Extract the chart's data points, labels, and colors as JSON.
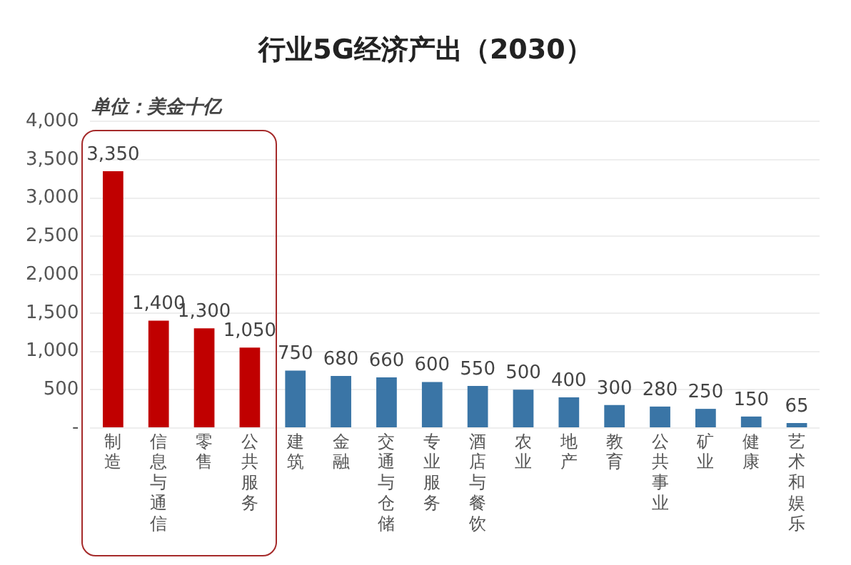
{
  "chart_data": {
    "type": "bar",
    "title": "行业5G经济产出（2030）",
    "annotations": [
      "单位：美金十亿"
    ],
    "categories": [
      "制造",
      "信息与通信",
      "零售",
      "公共服务",
      "建筑",
      "金融",
      "交通与仓储",
      "专业服务",
      "酒店与餐饮",
      "农业",
      "地产",
      "教育",
      "公共事业",
      "矿业",
      "健康",
      "艺术和娱乐"
    ],
    "values": [
      3350,
      1400,
      1300,
      1050,
      750,
      680,
      660,
      600,
      550,
      500,
      400,
      300,
      280,
      250,
      150,
      65
    ],
    "colors": [
      "#c00000",
      "#c00000",
      "#c00000",
      "#c00000",
      "#3a75a6",
      "#3a75a6",
      "#3a75a6",
      "#3a75a6",
      "#3a75a6",
      "#3a75a6",
      "#3a75a6",
      "#3a75a6",
      "#3a75a6",
      "#3a75a6",
      "#3a75a6",
      "#3a75a6"
    ],
    "value_labels": [
      "3,350",
      "1,400",
      "1,300",
      "1,050",
      "750",
      "680",
      "660",
      "600",
      "550",
      "500",
      "400",
      "300",
      "280",
      "250",
      "150",
      "65"
    ],
    "ylim": [
      0,
      4000
    ],
    "yticks": [
      {
        "value": 0,
        "label": "-"
      },
      500,
      {
        "value": 1000,
        "label": "1,000"
      },
      {
        "value": 1500,
        "label": "1,500"
      },
      {
        "value": 2000,
        "label": "2,000"
      },
      {
        "value": 2500,
        "label": "2,500"
      },
      {
        "value": 3000,
        "label": "3,000"
      },
      {
        "value": 3500,
        "label": "3,500"
      },
      {
        "value": 4000,
        "label": "4,000"
      }
    ],
    "grid": "y",
    "legend": false
  }
}
